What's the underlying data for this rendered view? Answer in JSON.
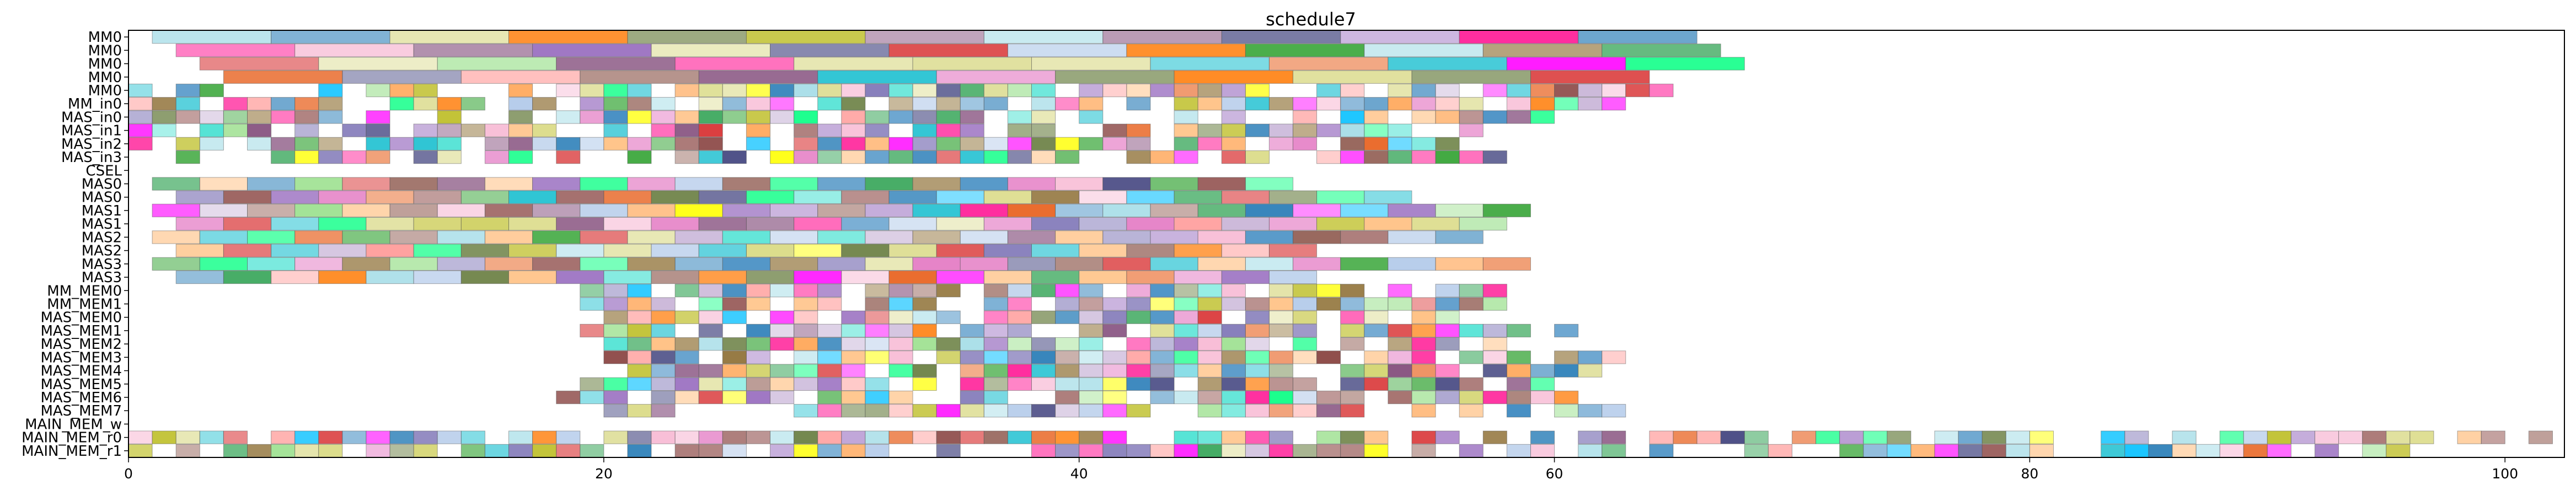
{
  "chart_data": {
    "type": "gantt",
    "title": "schedule7",
    "xlabel": "",
    "ylabel": "",
    "xlim": [
      0,
      102.5
    ],
    "x_ticks": [
      0,
      20,
      40,
      60,
      80,
      100
    ],
    "grid": false,
    "rows": [
      "MM0",
      "MM0",
      "MM0",
      "MM0",
      "MM0",
      "MM_in0",
      "MAS_in0",
      "MAS_in1",
      "MAS_in2",
      "MAS_in3",
      "CSEL",
      "MAS0",
      "MAS0",
      "MAS1",
      "MAS1",
      "MAS2",
      "MAS2",
      "MAS3",
      "MAS3",
      "MM_MEM0",
      "MM_MEM1",
      "MAS_MEM0",
      "MAS_MEM1",
      "MAS_MEM2",
      "MAS_MEM3",
      "MAS_MEM4",
      "MAS_MEM5",
      "MAS_MEM6",
      "MAS_MEM7",
      "MAIN_MEM_w",
      "MAIN_MEM_r0",
      "MAIN_MEM_r1"
    ],
    "row_spans": [
      {
        "start": 1.0,
        "end": 66.0,
        "step": 5
      },
      {
        "start": 2.0,
        "end": 67.0,
        "step": 5
      },
      {
        "start": 3.0,
        "end": 68.0,
        "step": 5
      },
      {
        "start": 4.0,
        "end": 64.0,
        "step": 5
      },
      {
        "start": 0.0,
        "end": 65.0,
        "step": 1
      },
      {
        "start": 0.0,
        "end": 63.0,
        "step": 1
      },
      {
        "start": 0.0,
        "end": 60.0,
        "step": 1
      },
      {
        "start": 0.0,
        "end": 57.0,
        "step": 1
      },
      {
        "start": 0.0,
        "end": 56.0,
        "step": 1
      },
      {
        "start": 0.0,
        "end": 58.0,
        "step": 1
      },
      {
        "start": 0.0,
        "end": 0.0,
        "step": 1
      },
      {
        "start": 1.0,
        "end": 50.0,
        "step": 2
      },
      {
        "start": 2.0,
        "end": 54.0,
        "step": 2
      },
      {
        "start": 1.0,
        "end": 59.0,
        "step": 2
      },
      {
        "start": 2.0,
        "end": 58.0,
        "step": 2
      },
      {
        "start": 1.0,
        "end": 57.0,
        "step": 2
      },
      {
        "start": 2.0,
        "end": 51.0,
        "step": 2
      },
      {
        "start": 1.0,
        "end": 60.0,
        "step": 2
      },
      {
        "start": 2.0,
        "end": 51.0,
        "step": 2
      },
      {
        "start": 19.0,
        "end": 58.0,
        "step": 1
      },
      {
        "start": 19.0,
        "end": 58.0,
        "step": 1
      },
      {
        "start": 19.0,
        "end": 57.0,
        "step": 1
      },
      {
        "start": 18.0,
        "end": 61.0,
        "step": 1
      },
      {
        "start": 20.0,
        "end": 59.0,
        "step": 1
      },
      {
        "start": 20.0,
        "end": 63.0,
        "step": 1
      },
      {
        "start": 20.0,
        "end": 62.0,
        "step": 1
      },
      {
        "start": 19.0,
        "end": 60.0,
        "step": 1
      },
      {
        "start": 18.0,
        "end": 61.0,
        "step": 1
      },
      {
        "start": 20.0,
        "end": 63.0,
        "step": 1
      },
      {
        "start": 0.0,
        "end": 0.0,
        "step": 1
      },
      {
        "start": 0.0,
        "end": 102.0,
        "step": 1
      },
      {
        "start": 0.0,
        "end": 96.0,
        "step": 1
      }
    ],
    "colors": [
      "#e377c2",
      "#98df8a",
      "#ff7f0e",
      "#1f77b4",
      "#d62728",
      "#9467bd",
      "#8c564b",
      "#2ca02c",
      "#17becf",
      "#bcbd22",
      "#ff9896",
      "#aec7e8",
      "#c5b0d5",
      "#f7b6d2",
      "#dbdb8d",
      "#9edae5",
      "#ffbb78",
      "#393b79",
      "#637939",
      "#8c6d31",
      "#843c39",
      "#7b4173",
      "#3182bd",
      "#e6550d",
      "#31a354",
      "#756bb1",
      "#00bfff",
      "#ff00ff",
      "#ffff00",
      "#00ff7f",
      "#ff1493",
      "#40e0d0"
    ]
  }
}
